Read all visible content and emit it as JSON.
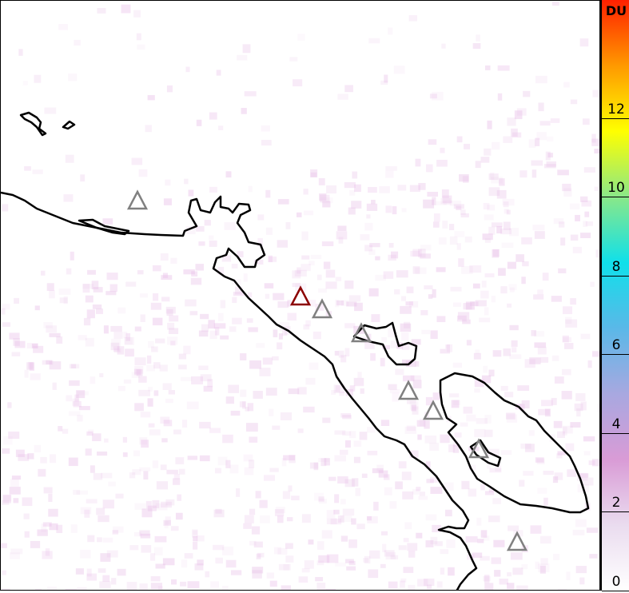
{
  "colorbar": {
    "unit": "DU",
    "range": [
      0,
      15
    ],
    "ticks": [
      "0",
      "2",
      "4",
      "6",
      "8",
      "10",
      "12"
    ],
    "colors": [
      "#ffffff",
      "#eadcef",
      "#d99bd6",
      "#a8a8e0",
      "#5ab8e8",
      "#10e0ea",
      "#8ae888",
      "#ffff00",
      "#ff9900",
      "#ff2000"
    ]
  },
  "map": {
    "volcanoes": [
      {
        "status": "active",
        "color": "#8b0000"
      },
      {
        "status": "other",
        "color": "#808080"
      }
    ],
    "fill_color": "#e8c0e8"
  }
}
